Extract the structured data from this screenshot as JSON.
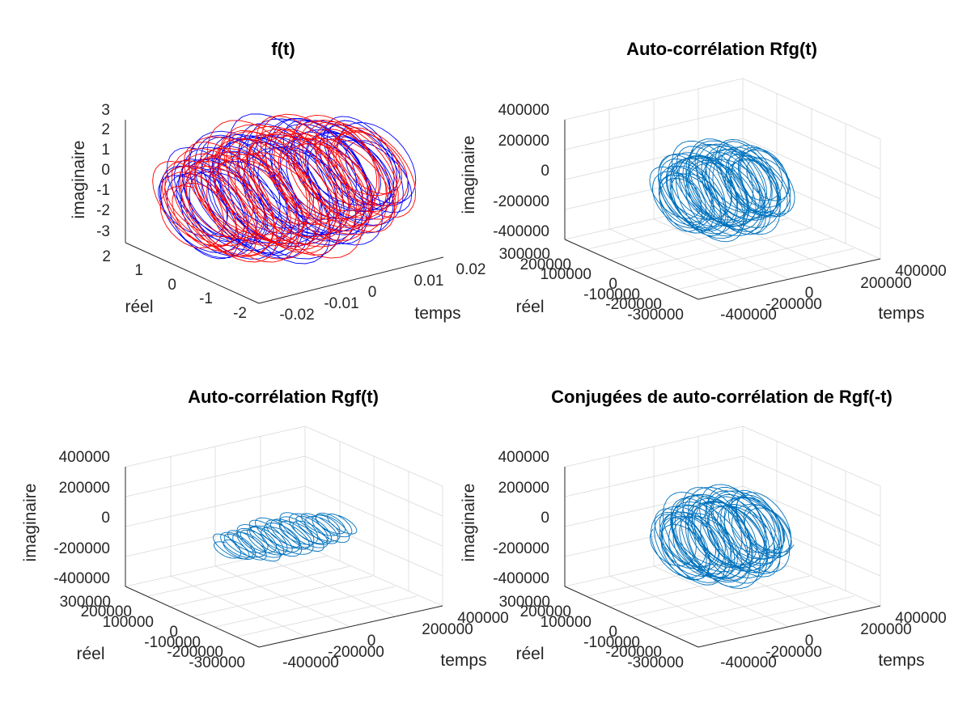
{
  "chart_data": [
    {
      "type": "line3d",
      "title": "f(t)",
      "xlabel": "temps",
      "ylabel": "réel",
      "zlabel": "imaginaire",
      "xlim": [
        -0.02,
        0.02
      ],
      "ylim": [
        -2,
        2
      ],
      "zlim": [
        -3,
        3
      ],
      "xticks": [
        "-0.02",
        "-0.01",
        "0",
        "0.01",
        "0.02"
      ],
      "yticks": [
        "2",
        "1",
        "0",
        "-1",
        "-2"
      ],
      "zticks": [
        "3",
        "2",
        "1",
        "0",
        "-1",
        "-2",
        "-3"
      ],
      "grid": false,
      "series": [
        {
          "color": "#0000ff",
          "x_range": [
            -0.02,
            0.02
          ],
          "real_amplitude": 2,
          "imag_amplitude": 3
        },
        {
          "color": "#ff0000",
          "x_range": [
            -0.02,
            0.02
          ],
          "real_amplitude": 2,
          "imag_amplitude": 3
        }
      ]
    },
    {
      "type": "line3d",
      "title": "Auto-corrélation Rfg(t)",
      "xlabel": "temps",
      "ylabel": "réel",
      "zlabel": "imaginaire",
      "xlim": [
        -400000,
        400000
      ],
      "ylim": [
        -300000,
        300000
      ],
      "zlim": [
        -400000,
        400000
      ],
      "xticks": [
        "-400000",
        "-200000",
        "0",
        "200000",
        "400000"
      ],
      "yticks": [
        "300000",
        "200000",
        "100000",
        "0",
        "-100000",
        "-200000",
        "-300000"
      ],
      "zticks": [
        "400000",
        "200000",
        "0",
        "-200000",
        "-400000"
      ],
      "grid": true,
      "series": [
        {
          "color": "#0072bd",
          "x_range": [
            -200000,
            200000
          ],
          "real_amplitude": 200000,
          "imag_amplitude": 300000
        }
      ]
    },
    {
      "type": "line3d",
      "title": "Auto-corrélation Rgf(t)",
      "xlabel": "temps",
      "ylabel": "réel",
      "zlabel": "imaginaire",
      "xlim": [
        -400000,
        400000
      ],
      "ylim": [
        -300000,
        300000
      ],
      "zlim": [
        -400000,
        400000
      ],
      "xticks": [
        "-400000",
        "-200000",
        "0",
        "200000",
        "400000"
      ],
      "yticks": [
        "300000",
        "200000",
        "100000",
        "0",
        "-100000",
        "-200000",
        "-300000"
      ],
      "zticks": [
        "400000",
        "200000",
        "0",
        "-200000",
        "-400000"
      ],
      "grid": true,
      "series": [
        {
          "color": "#0072bd",
          "x_range": [
            -250000,
            250000
          ],
          "real_amplitude": 120000,
          "imag_amplitude": 100000
        }
      ]
    },
    {
      "type": "line3d",
      "title": "Conjugées de auto-corrélation de Rgf(-t)",
      "xlabel": "temps",
      "ylabel": "réel",
      "zlabel": "imaginaire",
      "xlim": [
        -400000,
        400000
      ],
      "ylim": [
        -300000,
        300000
      ],
      "zlim": [
        -400000,
        400000
      ],
      "xticks": [
        "-400000",
        "-200000",
        "0",
        "200000",
        "400000"
      ],
      "yticks": [
        "300000",
        "200000",
        "100000",
        "0",
        "-100000",
        "-200000",
        "-300000"
      ],
      "zticks": [
        "400000",
        "200000",
        "0",
        "-200000",
        "-400000"
      ],
      "grid": true,
      "series": [
        {
          "color": "#0072bd",
          "x_range": [
            -200000,
            200000
          ],
          "real_amplitude": 200000,
          "imag_amplitude": 300000
        }
      ]
    }
  ]
}
